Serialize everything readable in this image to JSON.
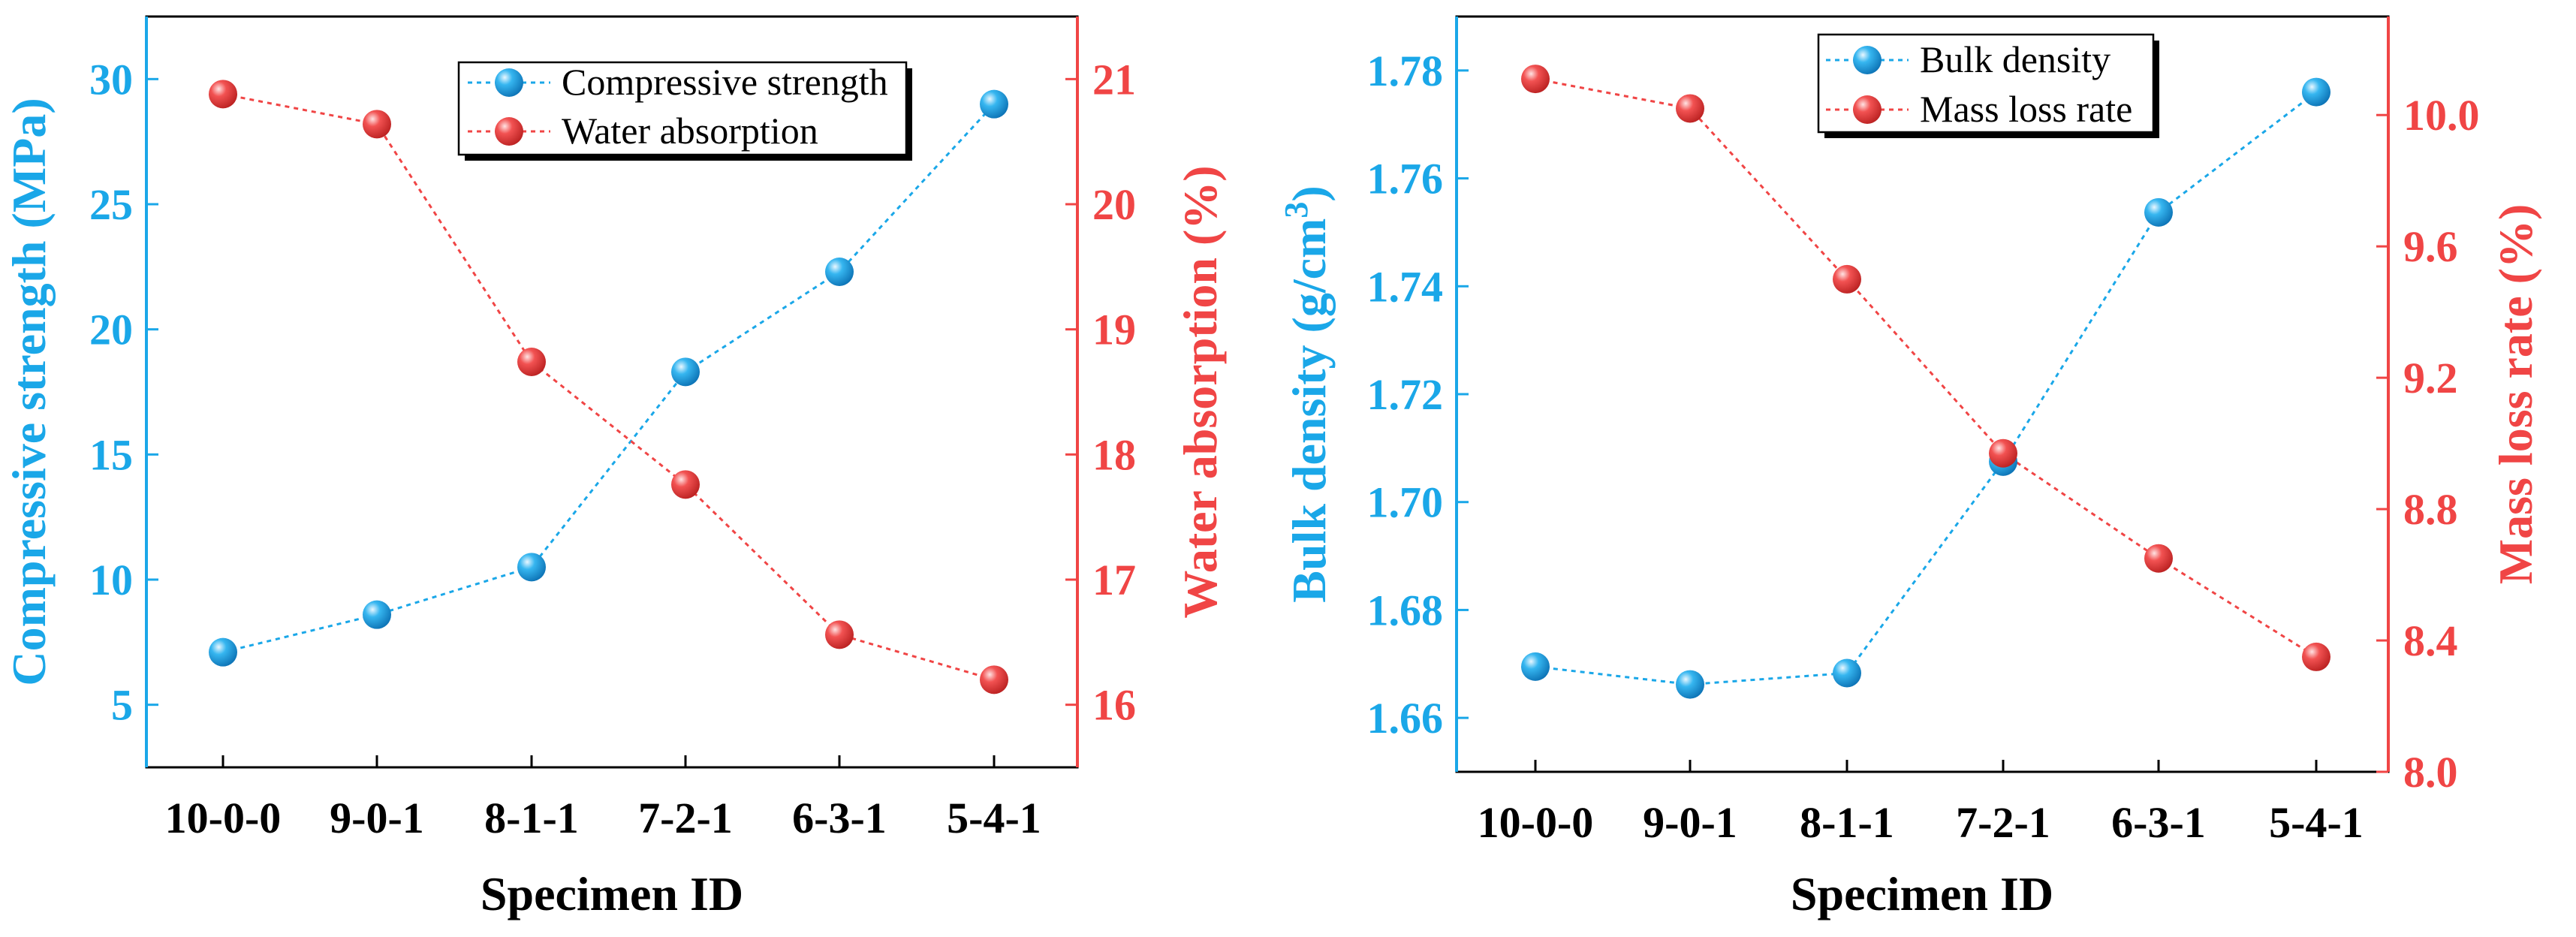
{
  "colors": {
    "blue": "#1aa7e8",
    "red": "#f04545",
    "black": "#000000"
  },
  "chart_data": [
    {
      "type": "line",
      "categories": [
        "10-0-0",
        "9-0-1",
        "8-1-1",
        "7-2-1",
        "6-3-1",
        "5-4-1"
      ],
      "xlabel": "Specimen ID",
      "ylabel": "Compressive strength (MPa)",
      "y2label": "Water absorption (%)",
      "ylim": [
        2.5,
        32.5
      ],
      "y2lim": [
        15.5,
        21.5
      ],
      "yticks": [
        "5",
        "10",
        "15",
        "20",
        "25",
        "30"
      ],
      "y2ticks": [
        "16",
        "17",
        "18",
        "19",
        "20",
        "21"
      ],
      "legend_position": "top-right",
      "series": [
        {
          "name": "Compressive strength",
          "axis": "left",
          "values": [
            7.1,
            8.6,
            10.5,
            18.3,
            22.3,
            29.0
          ]
        },
        {
          "name": "Water absorption",
          "axis": "right",
          "values": [
            20.88,
            20.64,
            18.74,
            17.76,
            16.56,
            16.2
          ]
        }
      ]
    },
    {
      "type": "line",
      "categories": [
        "10-0-0",
        "9-0-1",
        "8-1-1",
        "7-2-1",
        "6-3-1",
        "5-4-1"
      ],
      "xlabel": "Specimen ID",
      "ylabel_main": "Bulk density (g/cm",
      "ylabel_sup": "3",
      "ylabel_end": ")",
      "y2label": "Mass loss rate (%)",
      "ylim": [
        1.65,
        1.79
      ],
      "y2lim": [
        8.0,
        10.3
      ],
      "yticks": [
        "1.66",
        "1.68",
        "1.70",
        "1.72",
        "1.74",
        "1.76",
        "1.78"
      ],
      "y2ticks": [
        "8.0",
        "8.4",
        "8.8",
        "9.2",
        "9.6",
        "10.0"
      ],
      "legend_position": "top-right",
      "series": [
        {
          "name": "Bulk density",
          "axis": "left",
          "values": [
            1.6695,
            1.6662,
            1.6683,
            1.7075,
            1.7537,
            1.776
          ]
        },
        {
          "name": "Mass loss rate",
          "axis": "right",
          "values": [
            10.11,
            10.02,
            9.5,
            8.97,
            8.65,
            8.35
          ]
        }
      ]
    }
  ]
}
